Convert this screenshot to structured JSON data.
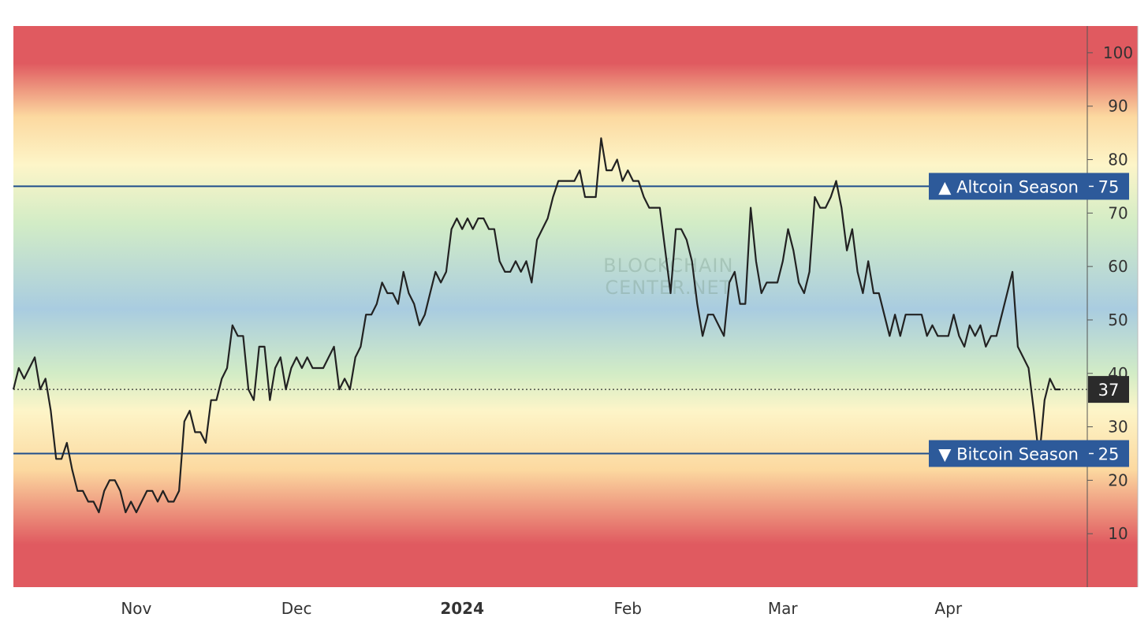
{
  "colors": {
    "extreme": "#e05a60",
    "warm": "#fcd9a0",
    "pale": "#fdf5c8",
    "mint": "#d2ecc6",
    "blue": "#a9cce0",
    "line": "#222222",
    "threshold": "#1f4e8c",
    "tag_bg": "#2d5a9a",
    "current_bg": "#2b2b2b"
  },
  "watermark": [
    "BLOCKCHAIN",
    "CENTER.NET"
  ],
  "chart_data": {
    "type": "line",
    "ylim": [
      0,
      105
    ],
    "yticks": [
      10,
      20,
      30,
      40,
      50,
      60,
      70,
      80,
      90,
      100
    ],
    "x_start_day": 0,
    "x_end_day": 201,
    "xticks": [
      {
        "label": "Nov",
        "day": 23,
        "bold": false
      },
      {
        "label": "Dec",
        "day": 53,
        "bold": false
      },
      {
        "label": "2024",
        "day": 84,
        "bold": true
      },
      {
        "label": "Feb",
        "day": 115,
        "bold": false
      },
      {
        "label": "Mar",
        "day": 144,
        "bold": false
      },
      {
        "label": "Apr",
        "day": 175,
        "bold": false
      }
    ],
    "thresholds": [
      {
        "label": "▲ Altcoin Season",
        "value": 75
      },
      {
        "label": "▼ Bitcoin Season",
        "value": 25
      }
    ],
    "current": {
      "value": 37,
      "label": "37"
    },
    "series": [
      {
        "points": [
          [
            0,
            37
          ],
          [
            1,
            41
          ],
          [
            2,
            39
          ],
          [
            3,
            41
          ],
          [
            4,
            43
          ],
          [
            5,
            37
          ],
          [
            6,
            39
          ],
          [
            7,
            33
          ],
          [
            8,
            24
          ],
          [
            9,
            24
          ],
          [
            10,
            27
          ],
          [
            11,
            22
          ],
          [
            12,
            18
          ],
          [
            13,
            18
          ],
          [
            14,
            16
          ],
          [
            15,
            16
          ],
          [
            16,
            14
          ],
          [
            17,
            18
          ],
          [
            18,
            20
          ],
          [
            19,
            20
          ],
          [
            20,
            18
          ],
          [
            21,
            14
          ],
          [
            22,
            16
          ],
          [
            23,
            14
          ],
          [
            24,
            16
          ],
          [
            25,
            18
          ],
          [
            26,
            18
          ],
          [
            27,
            16
          ],
          [
            28,
            18
          ],
          [
            29,
            16
          ],
          [
            30,
            16
          ],
          [
            31,
            18
          ],
          [
            32,
            31
          ],
          [
            33,
            33
          ],
          [
            34,
            29
          ],
          [
            35,
            29
          ],
          [
            36,
            27
          ],
          [
            37,
            35
          ],
          [
            38,
            35
          ],
          [
            39,
            39
          ],
          [
            40,
            41
          ],
          [
            41,
            49
          ],
          [
            42,
            47
          ],
          [
            43,
            47
          ],
          [
            44,
            37
          ],
          [
            45,
            35
          ],
          [
            46,
            45
          ],
          [
            47,
            45
          ],
          [
            48,
            35
          ],
          [
            49,
            41
          ],
          [
            50,
            43
          ],
          [
            51,
            37
          ],
          [
            52,
            41
          ],
          [
            53,
            43
          ],
          [
            54,
            41
          ],
          [
            55,
            43
          ],
          [
            56,
            41
          ],
          [
            57,
            41
          ],
          [
            58,
            41
          ],
          [
            59,
            43
          ],
          [
            60,
            45
          ],
          [
            61,
            37
          ],
          [
            62,
            39
          ],
          [
            63,
            37
          ],
          [
            64,
            43
          ],
          [
            65,
            45
          ],
          [
            66,
            51
          ],
          [
            67,
            51
          ],
          [
            68,
            53
          ],
          [
            69,
            57
          ],
          [
            70,
            55
          ],
          [
            71,
            55
          ],
          [
            72,
            53
          ],
          [
            73,
            59
          ],
          [
            74,
            55
          ],
          [
            75,
            53
          ],
          [
            76,
            49
          ],
          [
            77,
            51
          ],
          [
            78,
            55
          ],
          [
            79,
            59
          ],
          [
            80,
            57
          ],
          [
            81,
            59
          ],
          [
            82,
            67
          ],
          [
            83,
            69
          ],
          [
            84,
            67
          ],
          [
            85,
            69
          ],
          [
            86,
            67
          ],
          [
            87,
            69
          ],
          [
            88,
            69
          ],
          [
            89,
            67
          ],
          [
            90,
            67
          ],
          [
            91,
            61
          ],
          [
            92,
            59
          ],
          [
            93,
            59
          ],
          [
            94,
            61
          ],
          [
            95,
            59
          ],
          [
            96,
            61
          ],
          [
            97,
            57
          ],
          [
            98,
            65
          ],
          [
            99,
            67
          ],
          [
            100,
            69
          ],
          [
            101,
            73
          ],
          [
            102,
            76
          ],
          [
            103,
            76
          ],
          [
            104,
            76
          ],
          [
            105,
            76
          ],
          [
            106,
            78
          ],
          [
            107,
            73
          ],
          [
            108,
            73
          ],
          [
            109,
            73
          ],
          [
            110,
            84
          ],
          [
            111,
            78
          ],
          [
            112,
            78
          ],
          [
            113,
            80
          ],
          [
            114,
            76
          ],
          [
            115,
            78
          ],
          [
            116,
            76
          ],
          [
            117,
            76
          ],
          [
            118,
            73
          ],
          [
            119,
            71
          ],
          [
            120,
            71
          ],
          [
            121,
            71
          ],
          [
            122,
            63
          ],
          [
            123,
            55
          ],
          [
            124,
            67
          ],
          [
            125,
            67
          ],
          [
            126,
            65
          ],
          [
            127,
            61
          ],
          [
            128,
            53
          ],
          [
            129,
            47
          ],
          [
            130,
            51
          ],
          [
            131,
            51
          ],
          [
            132,
            49
          ],
          [
            133,
            47
          ],
          [
            134,
            57
          ],
          [
            135,
            59
          ],
          [
            136,
            53
          ],
          [
            137,
            53
          ],
          [
            138,
            71
          ],
          [
            139,
            61
          ],
          [
            140,
            55
          ],
          [
            141,
            57
          ],
          [
            142,
            57
          ],
          [
            143,
            57
          ],
          [
            144,
            61
          ],
          [
            145,
            67
          ],
          [
            146,
            63
          ],
          [
            147,
            57
          ],
          [
            148,
            55
          ],
          [
            149,
            59
          ],
          [
            150,
            73
          ],
          [
            151,
            71
          ],
          [
            152,
            71
          ],
          [
            153,
            73
          ],
          [
            154,
            76
          ],
          [
            155,
            71
          ],
          [
            156,
            63
          ],
          [
            157,
            67
          ],
          [
            158,
            59
          ],
          [
            159,
            55
          ],
          [
            160,
            61
          ],
          [
            161,
            55
          ],
          [
            162,
            55
          ],
          [
            163,
            51
          ],
          [
            164,
            47
          ],
          [
            165,
            51
          ],
          [
            166,
            47
          ],
          [
            167,
            51
          ],
          [
            168,
            51
          ],
          [
            169,
            51
          ],
          [
            170,
            51
          ],
          [
            171,
            47
          ],
          [
            172,
            49
          ],
          [
            173,
            47
          ],
          [
            174,
            47
          ],
          [
            175,
            47
          ],
          [
            176,
            51
          ],
          [
            177,
            47
          ],
          [
            178,
            45
          ],
          [
            179,
            49
          ],
          [
            180,
            47
          ],
          [
            181,
            49
          ],
          [
            182,
            45
          ],
          [
            183,
            47
          ],
          [
            184,
            47
          ],
          [
            185,
            51
          ],
          [
            186,
            55
          ],
          [
            187,
            59
          ],
          [
            188,
            45
          ],
          [
            189,
            43
          ],
          [
            190,
            41
          ],
          [
            191,
            33
          ],
          [
            192,
            24
          ],
          [
            193,
            35
          ],
          [
            194,
            39
          ],
          [
            195,
            37
          ],
          [
            196,
            37
          ]
        ]
      }
    ]
  }
}
